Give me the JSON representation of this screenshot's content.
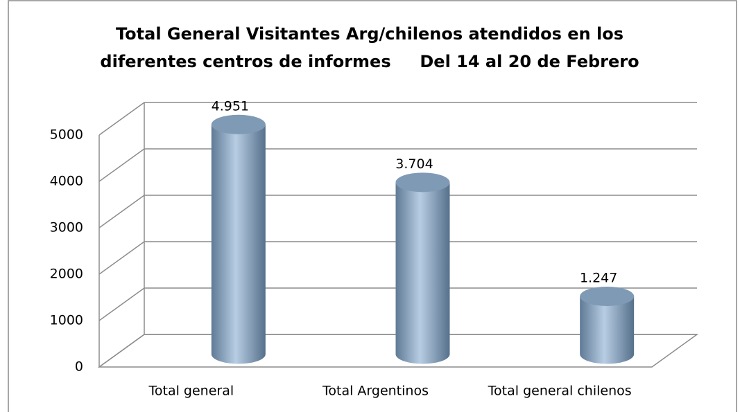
{
  "chart_data": {
    "type": "bar3d",
    "title": [
      "Total General Visitantes Arg/chilenos atendidos en los",
      "diferentes centros de informes     Del 14 al 20 de Febrero"
    ],
    "categories": [
      "Total general",
      "Total Argentinos",
      "Total general chilenos"
    ],
    "values": [
      4951,
      3704,
      1247
    ],
    "value_labels": [
      "4.951",
      "3.704",
      "1.247"
    ],
    "color": "#9bb5cf",
    "ylim": [
      0,
      5000
    ],
    "yticks": [
      0,
      1000,
      2000,
      3000,
      4000,
      5000
    ],
    "grid": true
  }
}
